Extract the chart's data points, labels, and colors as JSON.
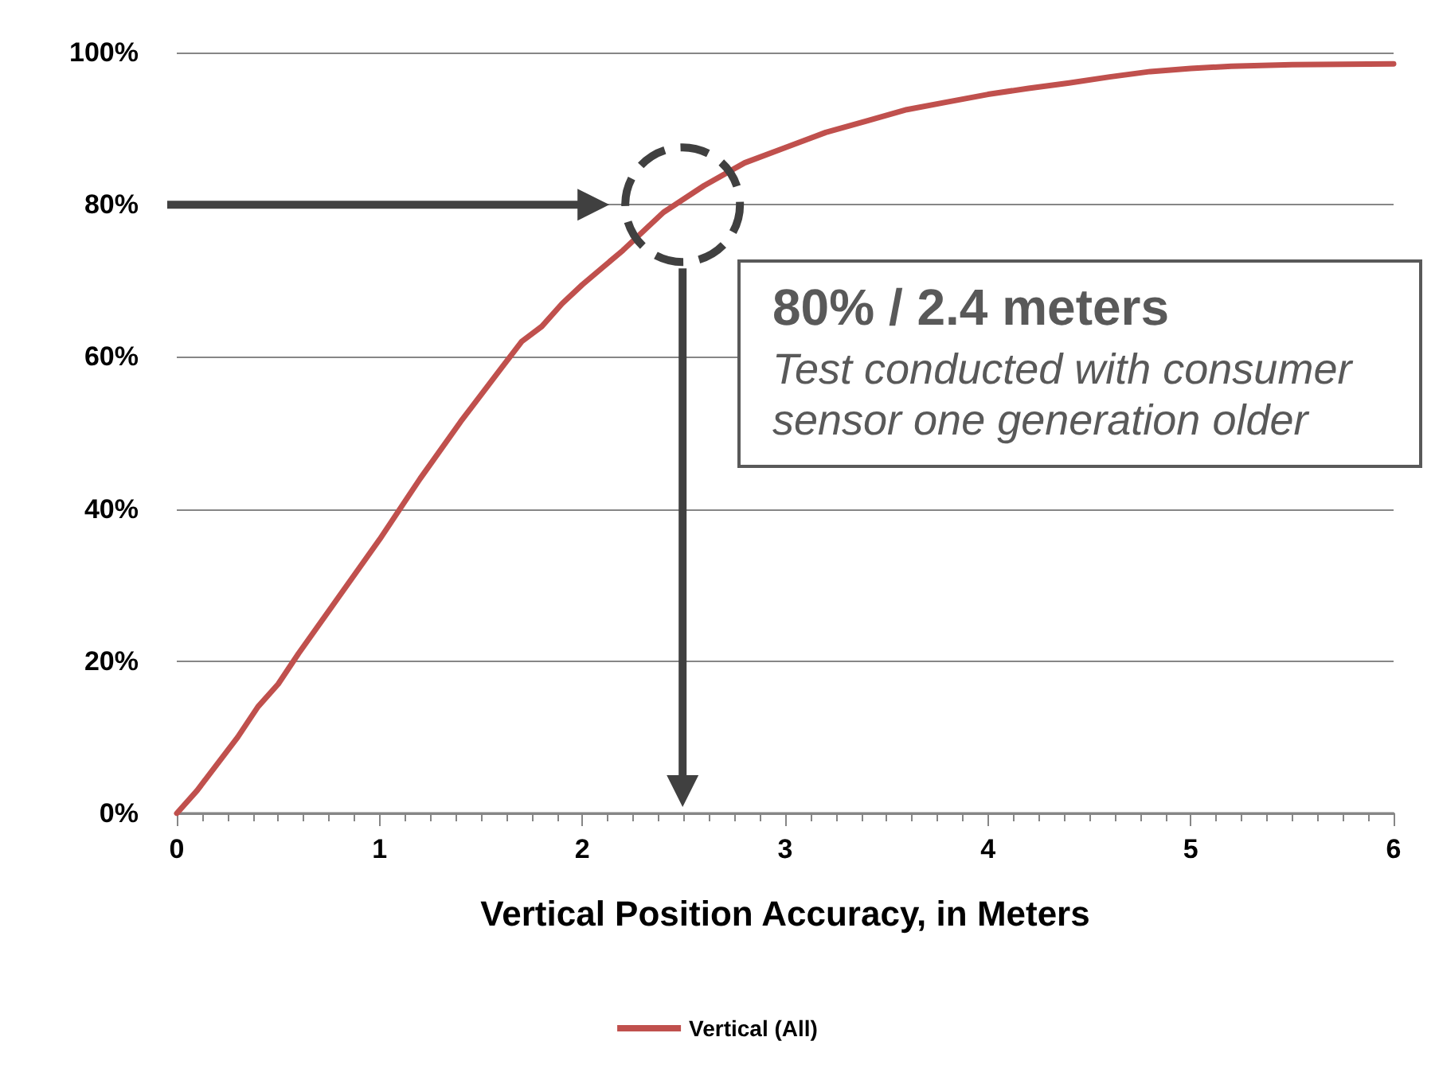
{
  "chart_data": {
    "type": "line",
    "xlabel": "Vertical Position Accuracy, in Meters",
    "x": [
      0,
      0.1,
      0.2,
      0.3,
      0.4,
      0.5,
      0.6,
      0.8,
      1.0,
      1.2,
      1.4,
      1.6,
      1.7,
      1.8,
      1.9,
      2.0,
      2.2,
      2.4,
      2.6,
      2.8,
      3.0,
      3.2,
      3.4,
      3.6,
      3.8,
      4.0,
      4.2,
      4.4,
      4.6,
      4.8,
      5.0,
      5.2,
      5.5,
      6.0
    ],
    "series": [
      {
        "name": "Vertical (All)",
        "color": "#c0504d",
        "values": [
          0,
          3,
          6.5,
          10,
          14,
          17,
          21,
          28.5,
          36,
          44,
          51.5,
          58.5,
          62,
          64,
          67,
          69.5,
          74,
          79,
          82.5,
          85.5,
          87.5,
          89.5,
          91,
          92.5,
          93.5,
          94.5,
          95.3,
          96,
          96.8,
          97.5,
          97.9,
          98.2,
          98.4,
          98.5
        ]
      }
    ],
    "xlim": [
      0,
      6
    ],
    "xticks": [
      0,
      1,
      2,
      3,
      4,
      5,
      6
    ],
    "ylim": [
      0,
      100
    ],
    "yticks": [
      {
        "value": 0,
        "label": "0%"
      },
      {
        "value": 20,
        "label": "20%"
      },
      {
        "value": 40,
        "label": "40%"
      },
      {
        "value": 60,
        "label": "60%"
      },
      {
        "value": 80,
        "label": "80%"
      },
      {
        "value": 100,
        "label": "100%"
      }
    ],
    "annotations": [
      {
        "text": "80% / 2.4 meters",
        "x": 2.4,
        "y": 80
      },
      "Test conducted with consumer sensor one generation older"
    ],
    "grid": "y",
    "legend": "bottom",
    "marker": "none",
    "line_style": "solid"
  }
}
